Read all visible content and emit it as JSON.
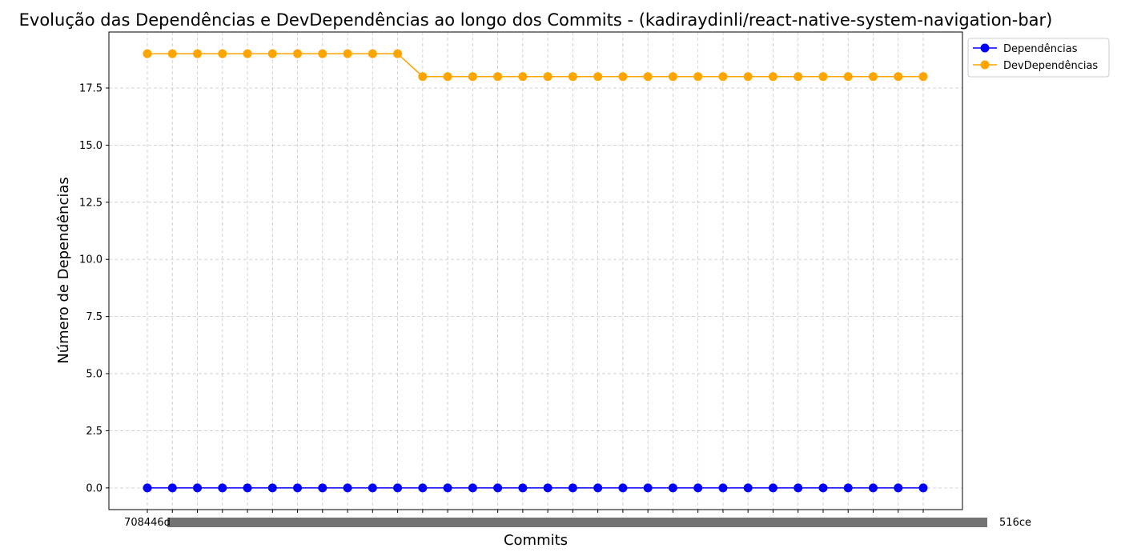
{
  "chart_data": {
    "type": "line",
    "title": "Evolução das Dependências e DevDependências ao longo dos Commits - (kadiraydinli/react-native-system-navigation-bar)",
    "xlabel": "Commits",
    "ylabel": "Número de Dependências",
    "ylim": [
      -0.95,
      19.95
    ],
    "yticks": [
      0.0,
      2.5,
      5.0,
      7.5,
      10.0,
      12.5,
      15.0,
      17.5
    ],
    "ytick_labels": [
      "0.0",
      "2.5",
      "5.0",
      "7.5",
      "10.0",
      "12.5",
      "15.0",
      "17.5"
    ],
    "grid": true,
    "grid_style": "dashed",
    "legend_position": "outside-top-right",
    "x_tick_labels_overlapping": true,
    "x_tick_labels_visible_ends": [
      "708446d",
      "516ce"
    ],
    "point_count": 32,
    "series": [
      {
        "name": "Dependências",
        "color": "#0000ff",
        "values": [
          0,
          0,
          0,
          0,
          0,
          0,
          0,
          0,
          0,
          0,
          0,
          0,
          0,
          0,
          0,
          0,
          0,
          0,
          0,
          0,
          0,
          0,
          0,
          0,
          0,
          0,
          0,
          0,
          0,
          0,
          0,
          0
        ]
      },
      {
        "name": "DevDependências",
        "color": "#ffa500",
        "values": [
          19,
          19,
          19,
          19,
          19,
          19,
          19,
          19,
          19,
          19,
          19,
          18,
          18,
          18,
          18,
          18,
          18,
          18,
          18,
          18,
          18,
          18,
          18,
          18,
          18,
          18,
          18,
          18,
          18,
          18,
          18,
          18
        ]
      }
    ]
  }
}
